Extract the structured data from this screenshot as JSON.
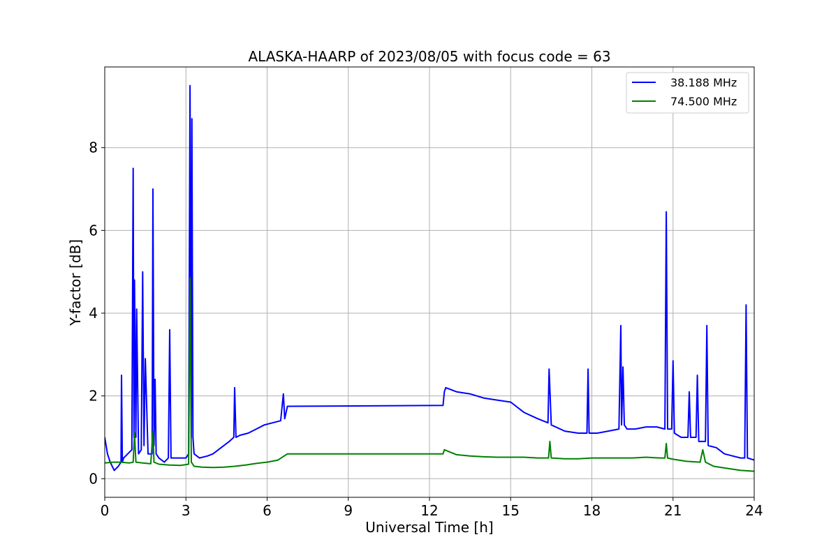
{
  "chart_data": {
    "type": "line",
    "title": "ALASKA-HAARP of 2023/08/05 with focus code = 63",
    "xlabel": "Universal Time [h]",
    "ylabel": "Y-factor [dB]",
    "xlim": [
      0,
      24
    ],
    "ylim": [
      -0.45,
      9.95
    ],
    "xticks": [
      0,
      3,
      6,
      9,
      12,
      15,
      18,
      21,
      24
    ],
    "yticks": [
      0,
      2,
      4,
      6,
      8
    ],
    "grid": true,
    "legend_position": "top-right",
    "series": [
      {
        "name": "38.188 MHz",
        "color": "#0000ff",
        "x": [
          0,
          0.1,
          0.2,
          0.35,
          0.5,
          0.6,
          0.62,
          0.65,
          0.7,
          0.85,
          1.0,
          1.05,
          1.08,
          1.1,
          1.15,
          1.18,
          1.25,
          1.35,
          1.4,
          1.45,
          1.5,
          1.6,
          1.75,
          1.78,
          1.82,
          1.86,
          1.9,
          2.0,
          2.2,
          2.35,
          2.4,
          2.45,
          2.6,
          2.8,
          3.0,
          3.1,
          3.15,
          3.2,
          3.22,
          3.26,
          3.3,
          3.5,
          3.8,
          4.0,
          4.3,
          4.6,
          4.77,
          4.8,
          4.85,
          5.0,
          5.3,
          5.6,
          5.9,
          6.2,
          6.5,
          6.6,
          6.65,
          6.75,
          12.5,
          12.55,
          12.6,
          13.0,
          13.5,
          14.0,
          14.5,
          15.0,
          15.5,
          16.0,
          16.38,
          16.42,
          16.5,
          17.0,
          17.5,
          17.82,
          17.86,
          17.9,
          18.2,
          18.6,
          19.0,
          19.07,
          19.1,
          19.15,
          19.2,
          19.3,
          19.6,
          20.0,
          20.4,
          20.7,
          20.75,
          20.8,
          20.95,
          21.0,
          21.05,
          21.3,
          21.55,
          21.6,
          21.65,
          21.85,
          21.9,
          21.95,
          22.2,
          22.25,
          22.3,
          22.6,
          22.9,
          23.2,
          23.5,
          23.65,
          23.7,
          23.75,
          24.0
        ],
        "y": [
          1.0,
          0.6,
          0.4,
          0.2,
          0.3,
          0.4,
          2.5,
          0.4,
          0.5,
          0.6,
          0.7,
          7.5,
          1.0,
          4.8,
          1.0,
          4.1,
          0.6,
          0.7,
          5.0,
          0.8,
          2.9,
          0.6,
          0.6,
          7.0,
          0.8,
          2.4,
          0.6,
          0.5,
          0.4,
          0.5,
          3.6,
          0.5,
          0.5,
          0.5,
          0.5,
          0.6,
          9.5,
          1.0,
          8.7,
          1.0,
          0.6,
          0.5,
          0.55,
          0.6,
          0.75,
          0.9,
          1.0,
          2.2,
          1.0,
          1.05,
          1.1,
          1.2,
          1.3,
          1.35,
          1.4,
          2.05,
          1.45,
          1.75,
          1.77,
          2.1,
          2.2,
          2.1,
          2.05,
          1.95,
          1.9,
          1.85,
          1.6,
          1.45,
          1.35,
          2.65,
          1.3,
          1.15,
          1.1,
          1.1,
          2.65,
          1.1,
          1.1,
          1.15,
          1.2,
          3.7,
          1.3,
          2.7,
          1.3,
          1.2,
          1.2,
          1.25,
          1.25,
          1.2,
          6.45,
          1.2,
          1.2,
          2.85,
          1.1,
          1.0,
          1.0,
          2.1,
          1.0,
          1.0,
          2.5,
          0.9,
          0.9,
          3.7,
          0.8,
          0.75,
          0.6,
          0.55,
          0.5,
          0.5,
          4.2,
          0.5,
          0.45
        ]
      },
      {
        "name": "74.500 MHz",
        "color": "#008000",
        "x": [
          0,
          0.3,
          0.6,
          0.9,
          1.05,
          1.1,
          1.15,
          1.4,
          1.7,
          1.78,
          1.82,
          2.0,
          2.4,
          2.8,
          3.1,
          3.15,
          3.2,
          3.3,
          3.6,
          4.0,
          4.4,
          4.8,
          5.2,
          5.6,
          6.0,
          6.4,
          6.75,
          12.5,
          12.55,
          13.0,
          13.5,
          14.0,
          14.5,
          15.0,
          15.5,
          16.0,
          16.4,
          16.45,
          16.5,
          17.0,
          17.5,
          18.0,
          18.5,
          19.0,
          19.5,
          20.0,
          20.5,
          20.7,
          20.75,
          20.8,
          21.0,
          21.5,
          22.0,
          22.1,
          22.2,
          22.5,
          23.0,
          23.5,
          24.0
        ],
        "y": [
          0.38,
          0.4,
          0.4,
          0.38,
          0.4,
          1.1,
          0.4,
          0.38,
          0.36,
          1.15,
          0.4,
          0.35,
          0.33,
          0.32,
          0.35,
          4.85,
          0.4,
          0.3,
          0.28,
          0.27,
          0.28,
          0.3,
          0.33,
          0.37,
          0.4,
          0.45,
          0.6,
          0.6,
          0.7,
          0.58,
          0.55,
          0.53,
          0.52,
          0.52,
          0.52,
          0.5,
          0.5,
          0.9,
          0.5,
          0.48,
          0.48,
          0.5,
          0.5,
          0.5,
          0.5,
          0.52,
          0.5,
          0.5,
          0.85,
          0.5,
          0.47,
          0.42,
          0.4,
          0.7,
          0.4,
          0.3,
          0.25,
          0.2,
          0.18
        ]
      }
    ]
  }
}
